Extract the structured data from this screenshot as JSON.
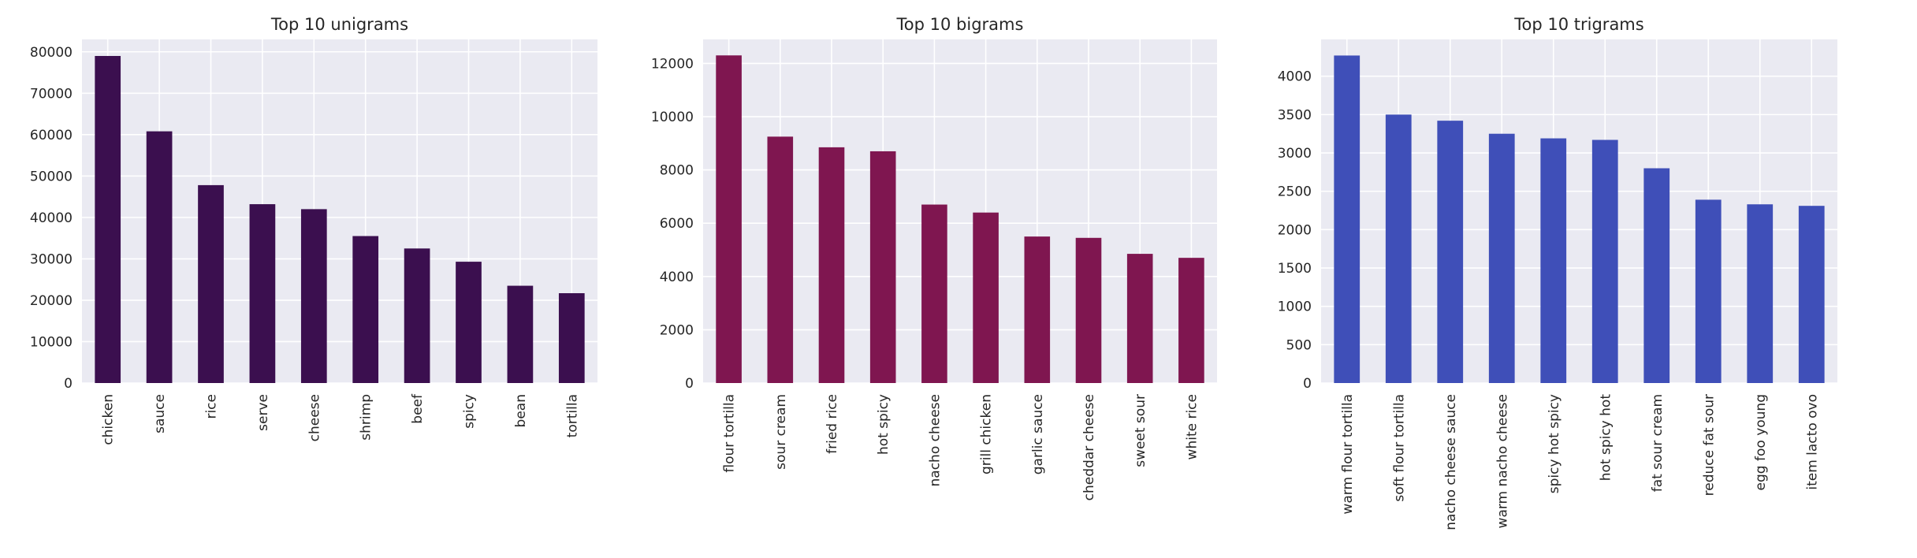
{
  "chart_data": [
    {
      "type": "bar",
      "title": "Top 10 unigrams",
      "xlabel": "",
      "ylabel": "",
      "categories": [
        "chicken",
        "sauce",
        "rice",
        "serve",
        "cheese",
        "shrimp",
        "beef",
        "spicy",
        "bean",
        "tortilla"
      ],
      "values": [
        79000,
        60800,
        47800,
        43200,
        42000,
        35500,
        32500,
        29300,
        23500,
        21700
      ],
      "ylim": [
        0,
        83000
      ],
      "yticks": [
        0,
        10000,
        20000,
        30000,
        40000,
        50000,
        60000,
        70000,
        80000
      ],
      "color": "#3b0f4f",
      "grid": true,
      "style": "seaborn-darkgrid"
    },
    {
      "type": "bar",
      "title": "Top 10 bigrams",
      "xlabel": "",
      "ylabel": "",
      "categories": [
        "flour tortilla",
        "sour cream",
        "fried rice",
        "hot spicy",
        "nacho cheese",
        "grill chicken",
        "garlic sauce",
        "cheddar cheese",
        "sweet sour",
        "white rice"
      ],
      "values": [
        12300,
        9250,
        8850,
        8700,
        6700,
        6400,
        5500,
        5450,
        4850,
        4700
      ],
      "ylim": [
        0,
        12900
      ],
      "yticks": [
        0,
        2000,
        4000,
        6000,
        8000,
        10000,
        12000
      ],
      "color": "#7f1650",
      "grid": true,
      "style": "seaborn-darkgrid"
    },
    {
      "type": "bar",
      "title": "Top 10 trigrams",
      "xlabel": "",
      "ylabel": "",
      "categories": [
        "warm flour tortilla",
        "soft flour tortilla",
        "nacho cheese sauce",
        "warm nacho cheese",
        "spicy hot spicy",
        "hot spicy hot",
        "fat sour cream",
        "reduce fat sour",
        "egg foo young",
        "item lacto ovo"
      ],
      "values": [
        4270,
        3500,
        3420,
        3250,
        3190,
        3170,
        2800,
        2390,
        2330,
        2310
      ],
      "ylim": [
        0,
        4480
      ],
      "yticks": [
        0,
        500,
        1000,
        1500,
        2000,
        2500,
        3000,
        3500,
        4000
      ],
      "color": "#3f4fb8",
      "grid": true,
      "style": "seaborn-darkgrid"
    }
  ]
}
